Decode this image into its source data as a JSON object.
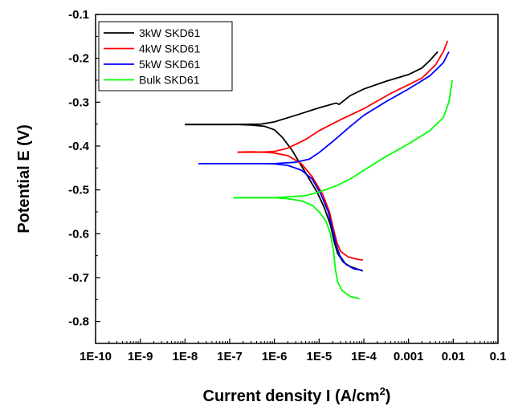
{
  "chart_data": {
    "type": "line",
    "xscale": "log",
    "xlabel_main": "Current density I (A/cm",
    "xlabel_sup": "2",
    "xlabel_close": ")",
    "ylabel": "Potential E (V)",
    "xlim": [
      1e-10,
      0.1
    ],
    "ylim": [
      -0.85,
      -0.1
    ],
    "xticks": [
      {
        "v": 1e-10,
        "label": "1E-10"
      },
      {
        "v": 1e-09,
        "label": "1E-9"
      },
      {
        "v": 1e-08,
        "label": "1E-8"
      },
      {
        "v": 1e-07,
        "label": "1E-7"
      },
      {
        "v": 1e-06,
        "label": "1E-6"
      },
      {
        "v": 1e-05,
        "label": "1E-5"
      },
      {
        "v": 0.0001,
        "label": "1E-4"
      },
      {
        "v": 0.001,
        "label": "0.001"
      },
      {
        "v": 0.01,
        "label": "0.01"
      },
      {
        "v": 0.1,
        "label": "0.1"
      }
    ],
    "yticks": [
      {
        "v": -0.1,
        "label": "-0.1"
      },
      {
        "v": -0.2,
        "label": "-0.2"
      },
      {
        "v": -0.3,
        "label": "-0.3"
      },
      {
        "v": -0.4,
        "label": "-0.4"
      },
      {
        "v": -0.5,
        "label": "-0.5"
      },
      {
        "v": -0.6,
        "label": "-0.6"
      },
      {
        "v": -0.7,
        "label": "-0.7"
      },
      {
        "v": -0.8,
        "label": "-0.8"
      }
    ],
    "legend_position": "top-left",
    "series": [
      {
        "name": "3kW SKD61",
        "color": "#000000",
        "cathodic": [
          [
            1e-08,
            -0.351
          ],
          [
            5e-08,
            -0.351
          ],
          [
            1.5e-07,
            -0.351
          ],
          [
            3e-07,
            -0.352
          ],
          [
            6e-07,
            -0.355
          ],
          [
            1e-06,
            -0.363
          ],
          [
            1.5e-06,
            -0.38
          ],
          [
            2.5e-06,
            -0.41
          ],
          [
            4e-06,
            -0.445
          ],
          [
            6e-06,
            -0.475
          ],
          [
            9e-06,
            -0.505
          ],
          [
            1.3e-05,
            -0.54
          ],
          [
            1.8e-05,
            -0.58
          ],
          [
            2.2e-05,
            -0.62
          ],
          [
            2.6e-05,
            -0.645
          ],
          [
            3.5e-05,
            -0.665
          ],
          [
            5e-05,
            -0.675
          ],
          [
            8e-05,
            -0.682
          ],
          [
            9.5e-05,
            -0.685
          ]
        ],
        "anodic": [
          [
            1e-08,
            -0.351
          ],
          [
            1e-07,
            -0.351
          ],
          [
            5e-07,
            -0.35
          ],
          [
            1e-06,
            -0.345
          ],
          [
            3e-06,
            -0.33
          ],
          [
            1e-05,
            -0.313
          ],
          [
            2.4e-05,
            -0.302
          ],
          [
            2.8e-05,
            -0.305
          ],
          [
            5e-05,
            -0.285
          ],
          [
            0.0001,
            -0.27
          ],
          [
            0.0003,
            -0.253
          ],
          [
            0.001,
            -0.237
          ],
          [
            0.002,
            -0.222
          ],
          [
            0.003,
            -0.205
          ],
          [
            0.0045,
            -0.185
          ]
        ]
      },
      {
        "name": "4kW SKD61",
        "color": "#ff0000",
        "cathodic": [
          [
            1.5e-07,
            -0.414
          ],
          [
            3e-07,
            -0.413
          ],
          [
            6e-07,
            -0.414
          ],
          [
            1e-06,
            -0.416
          ],
          [
            2e-06,
            -0.422
          ],
          [
            4e-06,
            -0.44
          ],
          [
            7e-06,
            -0.47
          ],
          [
            1.2e-05,
            -0.51
          ],
          [
            1.7e-05,
            -0.55
          ],
          [
            2.1e-05,
            -0.59
          ],
          [
            2.5e-05,
            -0.62
          ],
          [
            3e-05,
            -0.64
          ],
          [
            4.5e-05,
            -0.653
          ],
          [
            7e-05,
            -0.658
          ],
          [
            9.5e-05,
            -0.66
          ]
        ],
        "anodic": [
          [
            1.5e-07,
            -0.414
          ],
          [
            5e-07,
            -0.414
          ],
          [
            1e-06,
            -0.412
          ],
          [
            2e-06,
            -0.405
          ],
          [
            5e-06,
            -0.385
          ],
          [
            1e-05,
            -0.365
          ],
          [
            3e-05,
            -0.34
          ],
          [
            0.0001,
            -0.315
          ],
          [
            0.0004,
            -0.28
          ],
          [
            0.002,
            -0.245
          ],
          [
            0.004,
            -0.215
          ],
          [
            0.006,
            -0.185
          ],
          [
            0.0075,
            -0.16
          ]
        ]
      },
      {
        "name": "5kW SKD61",
        "color": "#0000ff",
        "cathodic": [
          [
            2e-08,
            -0.44
          ],
          [
            1e-07,
            -0.44
          ],
          [
            5e-07,
            -0.44
          ],
          [
            1e-06,
            -0.441
          ],
          [
            2e-06,
            -0.444
          ],
          [
            4e-06,
            -0.455
          ],
          [
            7e-06,
            -0.475
          ],
          [
            1.1e-05,
            -0.51
          ],
          [
            1.6e-05,
            -0.55
          ],
          [
            2e-05,
            -0.59
          ],
          [
            2.4e-05,
            -0.625
          ],
          [
            2.9e-05,
            -0.65
          ],
          [
            4e-05,
            -0.67
          ],
          [
            6e-05,
            -0.68
          ],
          [
            9e-05,
            -0.683
          ]
        ],
        "anodic": [
          [
            2e-08,
            -0.44
          ],
          [
            1e-07,
            -0.44
          ],
          [
            1e-06,
            -0.44
          ],
          [
            3e-06,
            -0.437
          ],
          [
            6e-06,
            -0.43
          ],
          [
            1e-05,
            -0.415
          ],
          [
            2e-05,
            -0.39
          ],
          [
            5e-05,
            -0.355
          ],
          [
            0.0001,
            -0.33
          ],
          [
            0.0003,
            -0.3
          ],
          [
            0.001,
            -0.27
          ],
          [
            0.003,
            -0.24
          ],
          [
            0.006,
            -0.21
          ],
          [
            0.008,
            -0.185
          ]
        ]
      },
      {
        "name": "Bulk SKD61",
        "color": "#00ff00",
        "cathodic": [
          [
            1.2e-07,
            -0.518
          ],
          [
            3e-07,
            -0.518
          ],
          [
            1e-06,
            -0.518
          ],
          [
            2e-06,
            -0.52
          ],
          [
            4e-06,
            -0.525
          ],
          [
            7e-06,
            -0.535
          ],
          [
            1e-05,
            -0.55
          ],
          [
            1.4e-05,
            -0.57
          ],
          [
            1.8e-05,
            -0.6
          ],
          [
            2.1e-05,
            -0.64
          ],
          [
            2.3e-05,
            -0.68
          ],
          [
            2.6e-05,
            -0.71
          ],
          [
            3.3e-05,
            -0.73
          ],
          [
            5e-05,
            -0.743
          ],
          [
            8e-05,
            -0.748
          ]
        ],
        "anodic": [
          [
            1.2e-07,
            -0.518
          ],
          [
            1e-06,
            -0.518
          ],
          [
            5e-06,
            -0.513
          ],
          [
            1e-05,
            -0.505
          ],
          [
            2.5e-05,
            -0.49
          ],
          [
            5e-05,
            -0.475
          ],
          [
            0.0001,
            -0.455
          ],
          [
            0.0003,
            -0.425
          ],
          [
            0.001,
            -0.395
          ],
          [
            0.003,
            -0.365
          ],
          [
            0.006,
            -0.335
          ],
          [
            0.008,
            -0.3
          ],
          [
            0.0095,
            -0.25
          ]
        ]
      }
    ]
  }
}
